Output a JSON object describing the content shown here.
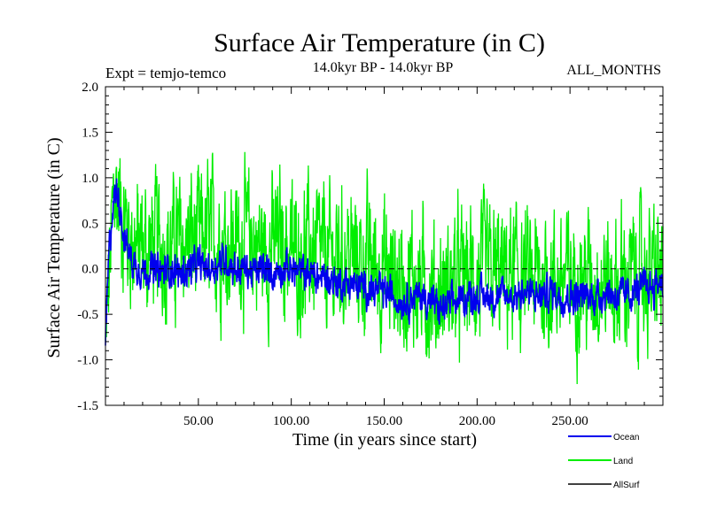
{
  "chart_data": {
    "type": "line",
    "title": "Surface Air Temperature (in C)",
    "subtitle_left": "Expt = temjo-temco",
    "subtitle_center": "14.0kyr BP - 14.0kyr BP",
    "subtitle_right": "ALL_MONTHS",
    "xlabel": "Time (in years since start)",
    "ylabel": "Surface Air Temperature (in C)",
    "xlim": [
      0,
      300
    ],
    "ylim": [
      -1.5,
      2.0
    ],
    "x_ticks": [
      50,
      100,
      150,
      200,
      250
    ],
    "x_tick_labels": [
      "50.00",
      "100.00",
      "150.00",
      "200.00",
      "250.00"
    ],
    "y_ticks": [
      -1.5,
      -1.0,
      -0.5,
      0.0,
      0.5,
      1.0,
      1.5,
      2.0
    ],
    "y_tick_labels": [
      "-1.5",
      "-1.0",
      "-0.5",
      "0.0",
      "0.5",
      "1.0",
      "1.5",
      "2.0"
    ],
    "reference_line": 0.0,
    "legend": [
      "Ocean",
      "Land",
      "AllSurf"
    ],
    "series": [
      {
        "name": "Land",
        "color": "#00ee00",
        "x": [
          0,
          3,
          5,
          8,
          10,
          15,
          20,
          25,
          30,
          35,
          40,
          45,
          50,
          55,
          60,
          65,
          70,
          75,
          80,
          85,
          90,
          95,
          100,
          105,
          110,
          115,
          120,
          125,
          130,
          135,
          140,
          145,
          150,
          155,
          160,
          165,
          170,
          175,
          180,
          185,
          190,
          195,
          200,
          205,
          210,
          215,
          220,
          225,
          230,
          235,
          240,
          245,
          250,
          255,
          260,
          265,
          270,
          275,
          280,
          285,
          290,
          295,
          300
        ],
        "values": [
          -0.9,
          0.3,
          0.9,
          0.7,
          0.5,
          0.3,
          0.2,
          0.25,
          0.3,
          0.2,
          0.25,
          0.3,
          0.3,
          0.35,
          0.35,
          0.3,
          0.25,
          0.35,
          0.3,
          0.2,
          0.25,
          0.3,
          0.2,
          0.15,
          0.2,
          0.15,
          0.1,
          0.1,
          0.15,
          0.1,
          0.05,
          0.05,
          0.0,
          -0.1,
          -0.15,
          -0.1,
          -0.2,
          -0.25,
          -0.3,
          -0.2,
          -0.15,
          -0.1,
          -0.1,
          -0.05,
          -0.1,
          -0.1,
          -0.05,
          -0.1,
          -0.15,
          -0.1,
          -0.1,
          -0.15,
          -0.1,
          -0.1,
          -0.15,
          -0.1,
          -0.15,
          -0.2,
          -0.1,
          -0.1,
          -0.05,
          -0.1,
          -0.1
        ],
        "spread": 0.55
      },
      {
        "name": "Ocean",
        "color": "#0000ee",
        "x": [
          0,
          2,
          4,
          6,
          8,
          10,
          15,
          20,
          25,
          30,
          35,
          40,
          45,
          50,
          55,
          60,
          65,
          70,
          75,
          80,
          85,
          90,
          95,
          100,
          105,
          110,
          115,
          120,
          125,
          130,
          135,
          140,
          145,
          150,
          155,
          160,
          165,
          170,
          175,
          180,
          185,
          190,
          195,
          200,
          205,
          210,
          215,
          220,
          225,
          230,
          235,
          240,
          245,
          250,
          255,
          260,
          265,
          270,
          275,
          280,
          285,
          290,
          295,
          300
        ],
        "values": [
          -0.8,
          0.2,
          0.7,
          0.85,
          0.7,
          0.35,
          0.05,
          0.0,
          0.0,
          -0.05,
          0.0,
          -0.05,
          0.0,
          0.05,
          0.0,
          0.05,
          0.1,
          0.0,
          0.0,
          -0.05,
          0.0,
          -0.05,
          0.0,
          0.0,
          -0.05,
          -0.05,
          -0.1,
          -0.1,
          -0.15,
          -0.15,
          -0.2,
          -0.2,
          -0.25,
          -0.25,
          -0.3,
          -0.35,
          -0.3,
          -0.3,
          -0.35,
          -0.45,
          -0.4,
          -0.35,
          -0.3,
          -0.3,
          -0.3,
          -0.3,
          -0.3,
          -0.3,
          -0.25,
          -0.3,
          -0.3,
          -0.25,
          -0.3,
          -0.3,
          -0.3,
          -0.3,
          -0.3,
          -0.25,
          -0.3,
          -0.3,
          -0.25,
          -0.2,
          -0.2,
          -0.1
        ],
        "spread": 0.14
      },
      {
        "name": "AllSurf",
        "color": "#000000",
        "x": [],
        "values": []
      }
    ]
  }
}
